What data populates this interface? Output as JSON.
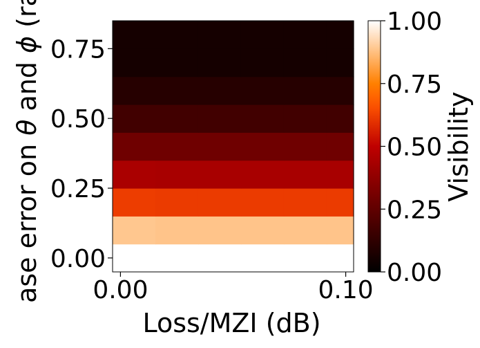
{
  "chart_data": {
    "type": "heatmap",
    "xlabel": "Loss/MZI (dB)",
    "ylabel_prefix": "ase error on ",
    "ylabel_theta": "θ",
    "ylabel_and": " and ",
    "ylabel_phi": "ϕ",
    "ylabel_suffix": " (ra",
    "xlim": [
      -0.0035,
      0.1035
    ],
    "ylim": [
      -0.05,
      0.85
    ],
    "x_bins": [
      [
        -0.0035,
        0.0155
      ],
      [
        0.0155,
        0.0345
      ],
      [
        0.0345,
        0.0535
      ],
      [
        0.0535,
        0.0725
      ],
      [
        0.0725,
        0.0915
      ],
      [
        0.0915,
        0.1035
      ]
    ],
    "y_bins": [
      [
        -0.05,
        0.05
      ],
      [
        0.05,
        0.15
      ],
      [
        0.15,
        0.25
      ],
      [
        0.25,
        0.35
      ],
      [
        0.35,
        0.45
      ],
      [
        0.45,
        0.55
      ],
      [
        0.55,
        0.65
      ],
      [
        0.65,
        0.75
      ],
      [
        0.75,
        0.85
      ]
    ],
    "z": [
      [
        1.0,
        1.0,
        1.0,
        1.0,
        1.0,
        1.0
      ],
      [
        0.89,
        0.885,
        0.885,
        0.885,
        0.885,
        0.885
      ],
      [
        0.62,
        0.615,
        0.615,
        0.615,
        0.615,
        0.615
      ],
      [
        0.445,
        0.44,
        0.44,
        0.44,
        0.44,
        0.44
      ],
      [
        0.29,
        0.29,
        0.29,
        0.29,
        0.29,
        0.29
      ],
      [
        0.17,
        0.17,
        0.17,
        0.17,
        0.17,
        0.17
      ],
      [
        0.1,
        0.1,
        0.1,
        0.1,
        0.1,
        0.1
      ],
      [
        0.055,
        0.055,
        0.055,
        0.055,
        0.055,
        0.055
      ],
      [
        0.055,
        0.055,
        0.055,
        0.055,
        0.055,
        0.055
      ]
    ],
    "x_ticks": [
      {
        "value": 0.0,
        "label": "0.00"
      },
      {
        "value": 0.1,
        "label": "0.10"
      }
    ],
    "y_ticks": [
      {
        "value": 0.0,
        "label": "0.00"
      },
      {
        "value": 0.25,
        "label": "0.25"
      },
      {
        "value": 0.5,
        "label": "0.50"
      },
      {
        "value": 0.75,
        "label": "0.75"
      }
    ],
    "colorbar": {
      "label": "Visibility",
      "colormap": "gist_heat",
      "range": [
        0,
        1
      ],
      "ticks": [
        {
          "value": 0.0,
          "label": "0.00"
        },
        {
          "value": 0.25,
          "label": "0.25"
        },
        {
          "value": 0.5,
          "label": "0.50"
        },
        {
          "value": 0.75,
          "label": "0.75"
        },
        {
          "value": 1.0,
          "label": "1.00"
        }
      ]
    }
  }
}
